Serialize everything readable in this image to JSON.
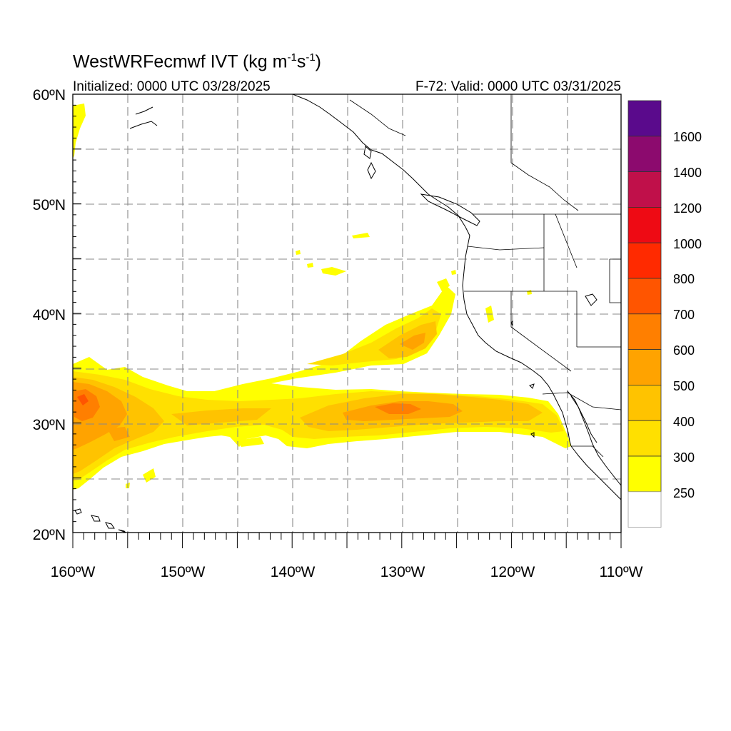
{
  "title": {
    "prefix": "WestWRFecmwf IVT (kg m",
    "sup1": "-1",
    "mid": "s",
    "sup2": "-1",
    "suffix": ")"
  },
  "initialized": "Initialized: 0000 UTC 03/28/2025",
  "valid": "F-72: Valid: 0000 UTC 03/31/2025",
  "axes": {
    "lat_labels": [
      "60ºN",
      "50ºN",
      "40ºN",
      "30ºN",
      "20ºN"
    ],
    "lon_labels": [
      "160ºW",
      "150ºW",
      "140ºW",
      "130ºW",
      "120ºW",
      "110ºW"
    ],
    "lat_range": [
      20,
      60
    ],
    "lon_range": [
      -160,
      -110
    ],
    "grid_spacing_deg": 5
  },
  "colorbar": {
    "labels": [
      "1600",
      "1400",
      "1200",
      "1000",
      "800",
      "700",
      "600",
      "500",
      "400",
      "300",
      "250"
    ],
    "colors_top_to_bottom": [
      "#5a0a8c",
      "#8c0a6e",
      "#c0104a",
      "#ee0a14",
      "#ff2a00",
      "#ff5500",
      "#ff7f00",
      "#ffa300",
      "#ffc300",
      "#ffe000",
      "#ffff00",
      "#ffffff"
    ]
  },
  "ivt_colors": {
    "c250": "#ffff00",
    "c300": "#ffe000",
    "c400": "#ffc300",
    "c500": "#ffa300",
    "c600": "#ff7f00",
    "c700": "#ff5500"
  }
}
